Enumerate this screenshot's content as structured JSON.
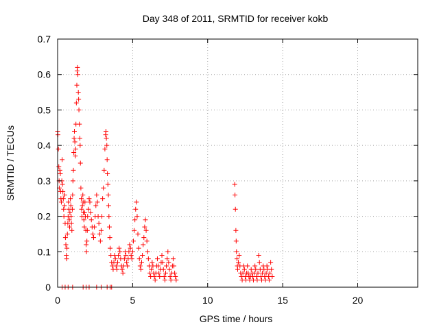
{
  "chart_data": {
    "type": "scatter",
    "title": "Day 348 of 2011, SRMTID for receiver kokb",
    "xlabel": "GPS time / hours",
    "ylabel": "SRMTID / TECUs",
    "xlim": [
      0,
      24
    ],
    "ylim": [
      0,
      0.7
    ],
    "xticks": [
      0,
      5,
      10,
      15,
      20
    ],
    "xtick_labels": [
      "0",
      "5",
      "10",
      "15",
      "20"
    ],
    "yticks": [
      0,
      0.1,
      0.2,
      0.3,
      0.4,
      0.5,
      0.6,
      0.7
    ],
    "ytick_labels": [
      "0",
      "0.1",
      "0.2",
      "0.3",
      "0.4",
      "0.5",
      "0.6",
      "0.7"
    ],
    "grid": true,
    "marker": "+",
    "color": "#ff0000",
    "series": [
      {
        "name": "SRMTID",
        "points": [
          [
            0.0,
            0.44
          ],
          [
            0.02,
            0.43
          ],
          [
            0.05,
            0.39
          ],
          [
            0.08,
            0.34
          ],
          [
            0.1,
            0.3
          ],
          [
            0.12,
            0.28
          ],
          [
            0.15,
            0.33
          ],
          [
            0.18,
            0.32
          ],
          [
            0.2,
            0.27
          ],
          [
            0.22,
            0.25
          ],
          [
            0.25,
            0.24
          ],
          [
            0.28,
            0.3
          ],
          [
            0.3,
            0.36
          ],
          [
            0.32,
            0.29
          ],
          [
            0.35,
            0.27
          ],
          [
            0.38,
            0.25
          ],
          [
            0.4,
            0.22
          ],
          [
            0.42,
            0.2
          ],
          [
            0.45,
            0.23
          ],
          [
            0.48,
            0.26
          ],
          [
            0.5,
            0.18
          ],
          [
            0.52,
            0.14
          ],
          [
            0.55,
            0.12
          ],
          [
            0.58,
            0.09
          ],
          [
            0.6,
            0.08
          ],
          [
            0.62,
            0.11
          ],
          [
            0.65,
            0.15
          ],
          [
            0.68,
            0.18
          ],
          [
            0.7,
            0.2
          ],
          [
            0.72,
            0.24
          ],
          [
            0.75,
            0.22
          ],
          [
            0.78,
            0.19
          ],
          [
            0.8,
            0.17
          ],
          [
            0.82,
            0.21
          ],
          [
            0.85,
            0.25
          ],
          [
            0.88,
            0.23
          ],
          [
            0.9,
            0.2
          ],
          [
            0.92,
            0.18
          ],
          [
            0.95,
            0.16
          ],
          [
            0.98,
            0.22
          ],
          [
            1.0,
            0.26
          ],
          [
            1.02,
            0.3
          ],
          [
            1.05,
            0.33
          ],
          [
            1.08,
            0.38
          ],
          [
            1.1,
            0.42
          ],
          [
            1.12,
            0.44
          ],
          [
            1.15,
            0.41
          ],
          [
            1.18,
            0.37
          ],
          [
            1.2,
            0.39
          ],
          [
            1.22,
            0.46
          ],
          [
            1.25,
            0.52
          ],
          [
            1.28,
            0.57
          ],
          [
            1.3,
            0.61
          ],
          [
            1.32,
            0.62
          ],
          [
            1.35,
            0.6
          ],
          [
            1.38,
            0.55
          ],
          [
            1.4,
            0.53
          ],
          [
            1.42,
            0.5
          ],
          [
            1.45,
            0.46
          ],
          [
            1.48,
            0.42
          ],
          [
            1.5,
            0.4
          ],
          [
            1.52,
            0.35
          ],
          [
            1.55,
            0.28
          ],
          [
            1.58,
            0.25
          ],
          [
            1.6,
            0.22
          ],
          [
            1.62,
            0.2
          ],
          [
            1.65,
            0.23
          ],
          [
            1.68,
            0.26
          ],
          [
            1.7,
            0.24
          ],
          [
            1.72,
            0.21
          ],
          [
            1.75,
            0.19
          ],
          [
            1.78,
            0.17
          ],
          [
            1.8,
            0.21
          ],
          [
            1.82,
            0.24
          ],
          [
            1.85,
            0.2
          ],
          [
            1.88,
            0.16
          ],
          [
            1.9,
            0.12
          ],
          [
            1.92,
            0.1
          ],
          [
            1.95,
            0.13
          ],
          [
            1.98,
            0.16
          ],
          [
            2.0,
            0.2
          ],
          [
            2.05,
            0.22
          ],
          [
            2.1,
            0.25
          ],
          [
            2.15,
            0.24
          ],
          [
            2.2,
            0.21
          ],
          [
            2.25,
            0.19
          ],
          [
            2.3,
            0.17
          ],
          [
            2.35,
            0.15
          ],
          [
            2.4,
            0.14
          ],
          [
            2.45,
            0.17
          ],
          [
            2.5,
            0.2
          ],
          [
            2.55,
            0.23
          ],
          [
            2.6,
            0.26
          ],
          [
            2.65,
            0.24
          ],
          [
            2.7,
            0.2
          ],
          [
            2.75,
            0.18
          ],
          [
            2.8,
            0.15
          ],
          [
            2.85,
            0.13
          ],
          [
            2.9,
            0.16
          ],
          [
            2.95,
            0.2
          ],
          [
            3.0,
            0.25
          ],
          [
            3.05,
            0.28
          ],
          [
            3.1,
            0.33
          ],
          [
            3.15,
            0.39
          ],
          [
            3.2,
            0.43
          ],
          [
            3.22,
            0.44
          ],
          [
            3.25,
            0.42
          ],
          [
            3.28,
            0.4
          ],
          [
            3.3,
            0.36
          ],
          [
            3.32,
            0.32
          ],
          [
            3.35,
            0.29
          ],
          [
            3.38,
            0.26
          ],
          [
            3.4,
            0.23
          ],
          [
            3.42,
            0.2
          ],
          [
            3.45,
            0.17
          ],
          [
            3.48,
            0.14
          ],
          [
            3.5,
            0.11
          ],
          [
            3.55,
            0.09
          ],
          [
            3.6,
            0.07
          ],
          [
            3.65,
            0.06
          ],
          [
            3.7,
            0.05
          ],
          [
            3.75,
            0.07
          ],
          [
            3.8,
            0.09
          ],
          [
            3.85,
            0.08
          ],
          [
            3.9,
            0.06
          ],
          [
            3.95,
            0.05
          ],
          [
            4.0,
            0.07
          ],
          [
            4.05,
            0.09
          ],
          [
            4.1,
            0.11
          ],
          [
            4.15,
            0.1
          ],
          [
            4.2,
            0.08
          ],
          [
            4.25,
            0.06
          ],
          [
            4.3,
            0.05
          ],
          [
            4.35,
            0.04
          ],
          [
            4.4,
            0.06
          ],
          [
            4.45,
            0.08
          ],
          [
            4.5,
            0.1
          ],
          [
            4.55,
            0.09
          ],
          [
            4.6,
            0.07
          ],
          [
            4.65,
            0.06
          ],
          [
            4.7,
            0.08
          ],
          [
            4.75,
            0.1
          ],
          [
            4.8,
            0.12
          ],
          [
            4.85,
            0.11
          ],
          [
            4.9,
            0.09
          ],
          [
            4.95,
            0.08
          ],
          [
            5.0,
            0.1
          ],
          [
            5.05,
            0.13
          ],
          [
            5.1,
            0.16
          ],
          [
            5.15,
            0.19
          ],
          [
            5.2,
            0.22
          ],
          [
            5.25,
            0.24
          ],
          [
            5.3,
            0.2
          ],
          [
            5.35,
            0.15
          ],
          [
            5.4,
            0.11
          ],
          [
            5.45,
            0.08
          ],
          [
            5.5,
            0.06
          ],
          [
            5.55,
            0.05
          ],
          [
            5.6,
            0.07
          ],
          [
            5.65,
            0.09
          ],
          [
            5.7,
            0.12
          ],
          [
            5.75,
            0.14
          ],
          [
            5.8,
            0.17
          ],
          [
            5.85,
            0.19
          ],
          [
            5.9,
            0.16
          ],
          [
            5.95,
            0.13
          ],
          [
            6.0,
            0.1
          ],
          [
            6.05,
            0.08
          ],
          [
            6.1,
            0.06
          ],
          [
            6.15,
            0.04
          ],
          [
            6.2,
            0.03
          ],
          [
            6.25,
            0.05
          ],
          [
            6.3,
            0.07
          ],
          [
            6.35,
            0.06
          ],
          [
            6.4,
            0.04
          ],
          [
            6.45,
            0.03
          ],
          [
            6.5,
            0.02
          ],
          [
            6.55,
            0.04
          ],
          [
            6.6,
            0.06
          ],
          [
            6.65,
            0.08
          ],
          [
            6.7,
            0.06
          ],
          [
            6.75,
            0.04
          ],
          [
            6.8,
            0.03
          ],
          [
            6.85,
            0.05
          ],
          [
            6.9,
            0.07
          ],
          [
            6.95,
            0.09
          ],
          [
            7.0,
            0.07
          ],
          [
            7.05,
            0.05
          ],
          [
            7.1,
            0.03
          ],
          [
            7.15,
            0.02
          ],
          [
            7.2,
            0.04
          ],
          [
            7.25,
            0.06
          ],
          [
            7.3,
            0.08
          ],
          [
            7.35,
            0.1
          ],
          [
            7.4,
            0.07
          ],
          [
            7.45,
            0.05
          ],
          [
            7.5,
            0.03
          ],
          [
            7.55,
            0.02
          ],
          [
            7.6,
            0.04
          ],
          [
            7.65,
            0.06
          ],
          [
            7.7,
            0.08
          ],
          [
            7.75,
            0.06
          ],
          [
            7.8,
            0.04
          ],
          [
            7.85,
            0.03
          ],
          [
            7.9,
            0.02
          ],
          [
            0.3,
            0.0
          ],
          [
            0.5,
            0.0
          ],
          [
            0.7,
            0.0
          ],
          [
            1.0,
            0.0
          ],
          [
            1.7,
            0.0
          ],
          [
            1.9,
            0.0
          ],
          [
            2.1,
            0.0
          ],
          [
            2.6,
            0.0
          ],
          [
            2.9,
            0.0
          ],
          [
            3.3,
            0.0
          ],
          [
            3.5,
            0.0
          ],
          [
            3.6,
            0.0
          ],
          [
            11.8,
            0.29
          ],
          [
            11.82,
            0.26
          ],
          [
            11.85,
            0.22
          ],
          [
            11.88,
            0.16
          ],
          [
            11.9,
            0.13
          ],
          [
            11.92,
            0.1
          ],
          [
            11.95,
            0.08
          ],
          [
            11.98,
            0.06
          ],
          [
            12.0,
            0.05
          ],
          [
            12.05,
            0.07
          ],
          [
            12.1,
            0.09
          ],
          [
            12.15,
            0.06
          ],
          [
            12.2,
            0.04
          ],
          [
            12.25,
            0.03
          ],
          [
            12.3,
            0.02
          ],
          [
            12.35,
            0.04
          ],
          [
            12.4,
            0.06
          ],
          [
            12.45,
            0.05
          ],
          [
            12.5,
            0.03
          ],
          [
            12.55,
            0.02
          ],
          [
            12.6,
            0.04
          ],
          [
            12.65,
            0.06
          ],
          [
            12.7,
            0.04
          ],
          [
            12.75,
            0.03
          ],
          [
            12.8,
            0.02
          ],
          [
            12.85,
            0.03
          ],
          [
            12.9,
            0.05
          ],
          [
            12.95,
            0.04
          ],
          [
            13.0,
            0.03
          ],
          [
            13.05,
            0.02
          ],
          [
            13.1,
            0.04
          ],
          [
            13.15,
            0.06
          ],
          [
            13.2,
            0.05
          ],
          [
            13.25,
            0.03
          ],
          [
            13.3,
            0.02
          ],
          [
            13.35,
            0.04
          ],
          [
            13.4,
            0.09
          ],
          [
            13.45,
            0.07
          ],
          [
            13.5,
            0.05
          ],
          [
            13.55,
            0.03
          ],
          [
            13.6,
            0.02
          ],
          [
            13.65,
            0.04
          ],
          [
            13.7,
            0.06
          ],
          [
            13.75,
            0.05
          ],
          [
            13.8,
            0.03
          ],
          [
            13.85,
            0.02
          ],
          [
            13.9,
            0.04
          ],
          [
            13.95,
            0.06
          ],
          [
            14.0,
            0.05
          ],
          [
            14.05,
            0.03
          ],
          [
            14.1,
            0.02
          ],
          [
            14.15,
            0.04
          ],
          [
            14.2,
            0.07
          ],
          [
            14.25,
            0.05
          ],
          [
            14.3,
            0.03
          ]
        ]
      }
    ]
  }
}
